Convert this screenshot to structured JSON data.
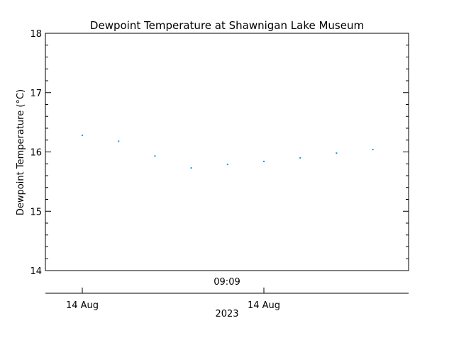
{
  "chart_data": {
    "type": "scatter",
    "title": "Dewpoint Temperature at Shawnigan Lake Museum",
    "ylabel": "Dewpoint Temperature (°C)",
    "ylim": [
      14,
      18
    ],
    "yticks": [
      14,
      15,
      16,
      17,
      18
    ],
    "ytick_labels": [
      "14",
      "15",
      "16",
      "17",
      "18"
    ],
    "x_time_label": "09:09",
    "x_date_ticks": [
      "14 Aug",
      "14 Aug"
    ],
    "x_year_label": "2023",
    "point_color": "#00a0d8",
    "series": [
      {
        "values": [
          16.28,
          16.18,
          15.93,
          15.73,
          15.79,
          15.84,
          15.9,
          15.98,
          16.04
        ]
      }
    ],
    "grid": false,
    "legend": "none"
  }
}
